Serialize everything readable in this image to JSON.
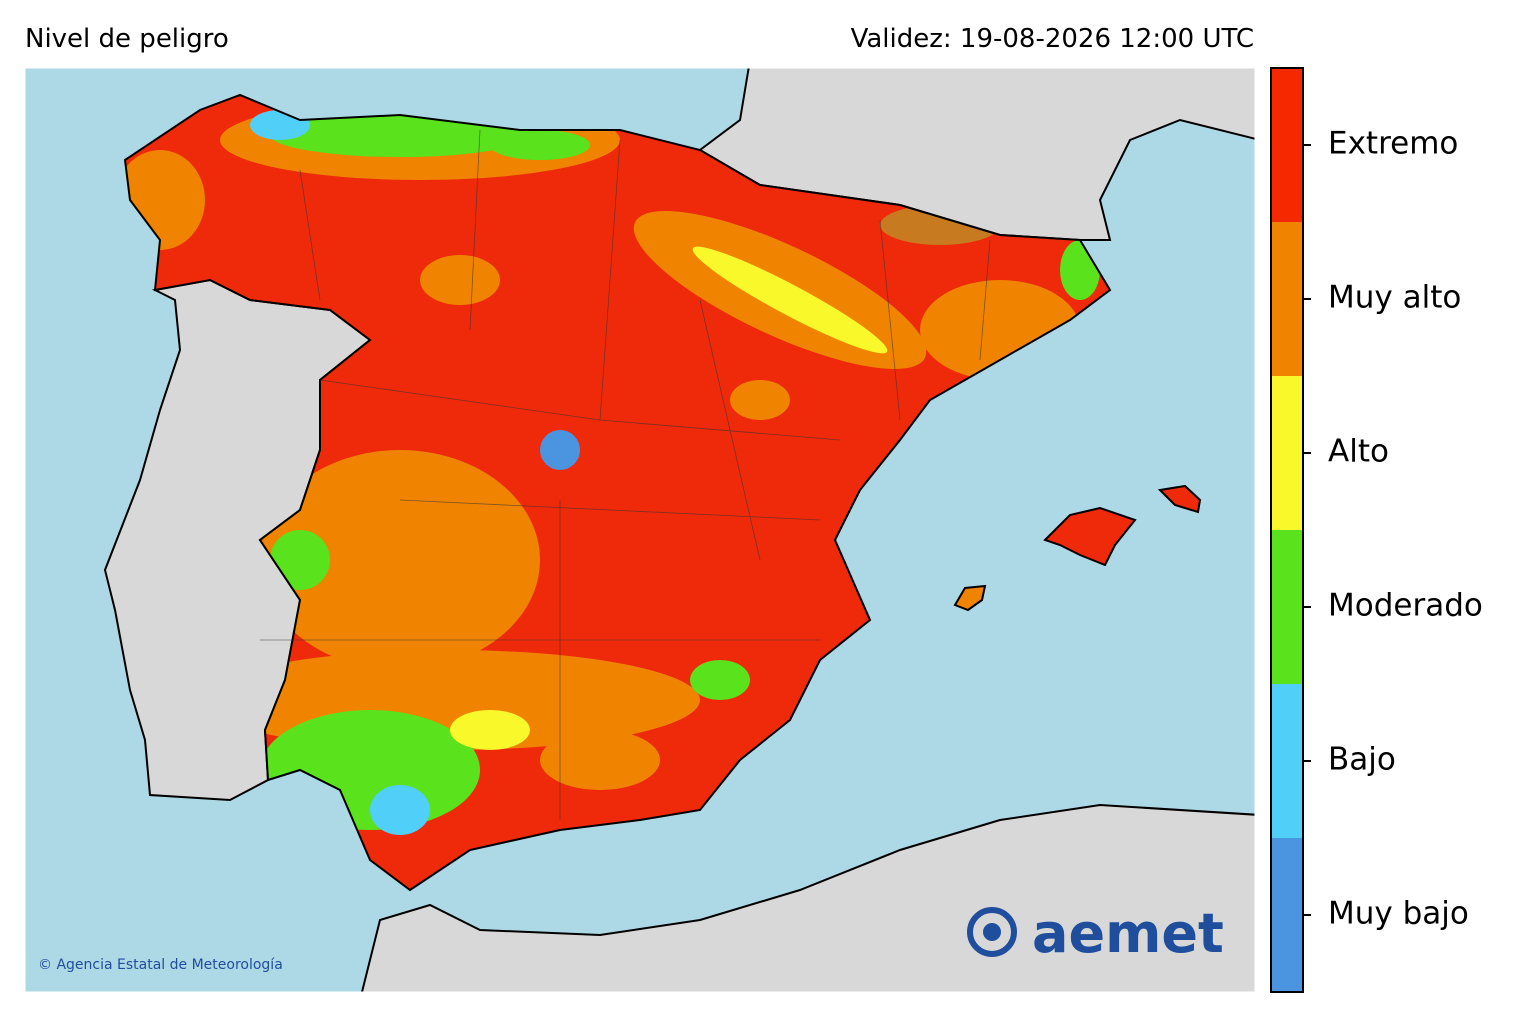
{
  "header": {
    "title": "Nivel de peligro",
    "validity": "Validez: 19-08-2026 12:00 UTC"
  },
  "legend": {
    "levels": [
      {
        "label": "Extremo",
        "color": "#f52800"
      },
      {
        "label": "Muy alto",
        "color": "#f08400"
      },
      {
        "label": "Alto",
        "color": "#f8f82a"
      },
      {
        "label": "Moderado",
        "color": "#5ae21c"
      },
      {
        "label": "Bajo",
        "color": "#50d0f8"
      },
      {
        "label": "Muy bajo",
        "color": "#4a94e0"
      }
    ]
  },
  "credit": "© Agencia Estatal de Meteorología",
  "logo": "aemet"
}
